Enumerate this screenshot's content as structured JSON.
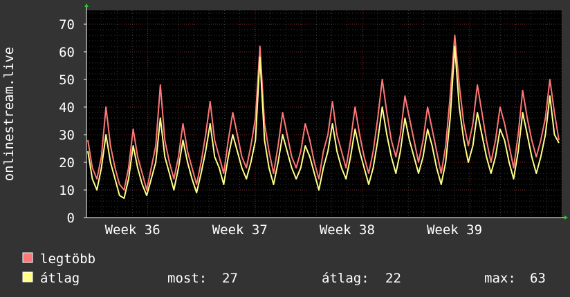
{
  "chart_data": {
    "type": "line",
    "ylabel": "onlinestream.live",
    "ylim": [
      0,
      75
    ],
    "y_ticks": [
      "0",
      "10",
      "20",
      "30",
      "40",
      "50",
      "60",
      "70"
    ],
    "x_ticks": [
      {
        "label": "Week 36",
        "day": 4
      },
      {
        "label": "Week 37",
        "day": 11
      },
      {
        "label": "Week 38",
        "day": 18
      },
      {
        "label": "Week 39",
        "day": 25
      }
    ],
    "x_range_days": [
      0,
      31
    ],
    "grid": true,
    "series": [
      {
        "name": "legtöbb",
        "color": "#ff7777",
        "values": [
          28,
          18,
          14,
          22,
          40,
          26,
          18,
          12,
          10,
          18,
          32,
          22,
          16,
          10,
          18,
          26,
          48,
          28,
          20,
          14,
          22,
          34,
          24,
          18,
          12,
          20,
          30,
          42,
          28,
          22,
          16,
          28,
          38,
          30,
          22,
          18,
          26,
          36,
          62,
          34,
          24,
          16,
          26,
          38,
          30,
          22,
          18,
          24,
          34,
          28,
          20,
          14,
          24,
          30,
          42,
          30,
          24,
          18,
          28,
          40,
          30,
          22,
          16,
          24,
          36,
          50,
          38,
          28,
          22,
          30,
          44,
          36,
          28,
          20,
          28,
          40,
          32,
          24,
          16,
          26,
          44,
          66,
          48,
          34,
          26,
          34,
          48,
          38,
          28,
          20,
          28,
          40,
          34,
          26,
          18,
          30,
          46,
          36,
          28,
          22,
          28,
          36,
          50,
          38,
          28
        ]
      },
      {
        "name": "átlag",
        "color": "#ffff88",
        "values": [
          24,
          14,
          10,
          18,
          30,
          20,
          14,
          8,
          7,
          14,
          26,
          18,
          12,
          8,
          14,
          20,
          36,
          22,
          16,
          10,
          18,
          28,
          20,
          14,
          9,
          16,
          24,
          34,
          22,
          18,
          12,
          22,
          30,
          24,
          18,
          14,
          20,
          28,
          58,
          28,
          18,
          12,
          20,
          30,
          24,
          18,
          14,
          18,
          26,
          22,
          16,
          10,
          18,
          24,
          34,
          24,
          18,
          14,
          22,
          32,
          24,
          18,
          12,
          18,
          28,
          40,
          30,
          22,
          16,
          24,
          36,
          28,
          22,
          16,
          22,
          32,
          26,
          18,
          12,
          20,
          36,
          62,
          40,
          28,
          20,
          26,
          38,
          30,
          22,
          16,
          22,
          32,
          28,
          20,
          14,
          24,
          38,
          30,
          22,
          16,
          22,
          30,
          44,
          30,
          27
        ]
      }
    ],
    "legend": [
      {
        "name": "legtöbb",
        "color": "#ff7777"
      },
      {
        "name": "átlag",
        "color": "#ffff88"
      }
    ],
    "stats": {
      "now_label": "most:",
      "now_value": "27",
      "avg_label": "átlag:",
      "avg_value": "22",
      "max_label": "max:",
      "max_value": "63"
    }
  }
}
